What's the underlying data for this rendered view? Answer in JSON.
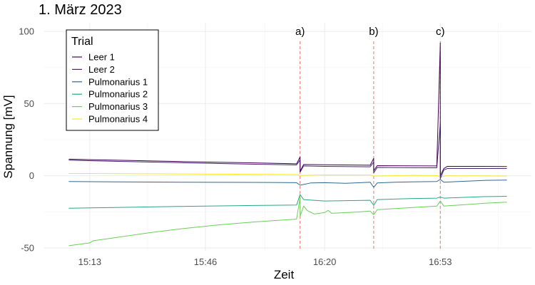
{
  "chart_data": {
    "type": "line",
    "title": "1. März 2023",
    "xlabel": "Zeit",
    "ylabel": "Spannung [mV]",
    "x_unit": "time of day (HH:MM)",
    "xlim": [
      "15:00",
      "17:19"
    ],
    "ylim": [
      -52,
      106
    ],
    "x_ticks": [
      "15:13",
      "15:46",
      "16:20",
      "16:53"
    ],
    "y_ticks": [
      -50,
      0,
      50,
      100
    ],
    "grid": true,
    "legend": {
      "title": "Trial",
      "placement": "top-left"
    },
    "annotations": [
      {
        "label": "a)",
        "x": "16:13",
        "line_style": "dashed",
        "line_color": "#e8796f"
      },
      {
        "label": "b)",
        "x": "16:34",
        "line_style": "dashed",
        "line_color": "#e8796f"
      },
      {
        "label": "c)",
        "x": "16:53",
        "line_style": "dashed",
        "line_color": "#e8796f"
      }
    ],
    "series": [
      {
        "name": "Leer 1",
        "color": "#440154",
        "points": [
          [
            "15:07",
            11.5
          ],
          [
            "15:20",
            10.8
          ],
          [
            "15:40",
            9.8
          ],
          [
            "16:00",
            8.9
          ],
          [
            "16:12",
            8.3
          ],
          [
            "16:13",
            13.0
          ],
          [
            "16:13",
            3.0
          ],
          [
            "16:14",
            7.8
          ],
          [
            "16:20",
            7.6
          ],
          [
            "16:33",
            7.3
          ],
          [
            "16:34",
            12.0
          ],
          [
            "16:34",
            3.5
          ],
          [
            "16:35",
            7.0
          ],
          [
            "16:45",
            6.9
          ],
          [
            "16:52",
            6.8
          ],
          [
            "16:53",
            92.0
          ],
          [
            "16:53",
            30.0
          ],
          [
            "16:53",
            0.0
          ],
          [
            "16:54",
            5.0
          ],
          [
            "16:55",
            6.5
          ],
          [
            "17:05",
            6.5
          ],
          [
            "17:12",
            6.4
          ]
        ]
      },
      {
        "name": "Leer 2",
        "color": "#482576",
        "points": [
          [
            "15:07",
            10.8
          ],
          [
            "15:20",
            10.0
          ],
          [
            "15:40",
            9.0
          ],
          [
            "16:00",
            8.0
          ],
          [
            "16:12",
            7.5
          ],
          [
            "16:13",
            11.0
          ],
          [
            "16:13",
            2.5
          ],
          [
            "16:14",
            6.8
          ],
          [
            "16:20",
            6.5
          ],
          [
            "16:33",
            6.2
          ],
          [
            "16:34",
            9.5
          ],
          [
            "16:34",
            2.0
          ],
          [
            "16:35",
            5.8
          ],
          [
            "16:45",
            5.6
          ],
          [
            "16:52",
            5.5
          ],
          [
            "16:53",
            36.0
          ],
          [
            "16:53",
            -2.0
          ],
          [
            "16:54",
            4.0
          ],
          [
            "16:55",
            5.0
          ],
          [
            "17:05",
            5.0
          ],
          [
            "17:12",
            5.0
          ]
        ]
      },
      {
        "name": "Pulmonarius 1",
        "color": "#31688e",
        "points": [
          [
            "15:07",
            -4.0
          ],
          [
            "15:20",
            -4.2
          ],
          [
            "15:40",
            -4.5
          ],
          [
            "16:00",
            -4.6
          ],
          [
            "16:12",
            -4.8
          ],
          [
            "16:13",
            -6.5
          ],
          [
            "16:16",
            -5.0
          ],
          [
            "16:20",
            -4.8
          ],
          [
            "16:26",
            -5.2
          ],
          [
            "16:33",
            -4.5
          ],
          [
            "16:34",
            -8.0
          ],
          [
            "16:35",
            -5.0
          ],
          [
            "16:40",
            -4.5
          ],
          [
            "16:45",
            -4.2
          ],
          [
            "16:52",
            -4.0
          ],
          [
            "16:53",
            -2.5
          ],
          [
            "16:54",
            -4.5
          ],
          [
            "17:00",
            -3.8
          ],
          [
            "17:06",
            -3.2
          ],
          [
            "17:12",
            -3.0
          ]
        ]
      },
      {
        "name": "Pulmonarius 2",
        "color": "#26a783",
        "points": [
          [
            "15:07",
            -22.5
          ],
          [
            "15:20",
            -22.0
          ],
          [
            "15:40",
            -21.2
          ],
          [
            "16:00",
            -20.6
          ],
          [
            "16:12",
            -20.3
          ],
          [
            "16:13",
            -13.0
          ],
          [
            "16:14",
            -16.5
          ],
          [
            "16:20",
            -17.5
          ],
          [
            "16:33",
            -17.0
          ],
          [
            "16:34",
            -20.5
          ],
          [
            "16:35",
            -16.5
          ],
          [
            "16:45",
            -15.8
          ],
          [
            "16:52",
            -15.5
          ],
          [
            "16:53",
            -14.8
          ],
          [
            "16:54",
            -15.5
          ],
          [
            "17:05",
            -14.5
          ],
          [
            "17:12",
            -14.2
          ]
        ]
      },
      {
        "name": "Pulmonarius 3",
        "color": "#6ccd5a",
        "points": [
          [
            "15:07",
            -48.5
          ],
          [
            "15:10",
            -47.5
          ],
          [
            "15:13",
            -46.5
          ],
          [
            "15:14",
            -45.0
          ],
          [
            "15:20",
            -43.0
          ],
          [
            "15:30",
            -39.5
          ],
          [
            "15:40",
            -36.5
          ],
          [
            "15:50",
            -34.0
          ],
          [
            "16:00",
            -32.0
          ],
          [
            "16:12",
            -30.0
          ],
          [
            "16:13",
            -15.0
          ],
          [
            "16:13",
            -28.0
          ],
          [
            "16:14",
            -21.0
          ],
          [
            "16:15",
            -24.0
          ],
          [
            "16:17",
            -26.5
          ],
          [
            "16:20",
            -25.5
          ],
          [
            "16:21",
            -24.0
          ],
          [
            "16:22",
            -26.0
          ],
          [
            "16:30",
            -25.0
          ],
          [
            "16:33",
            -24.5
          ],
          [
            "16:34",
            -27.0
          ],
          [
            "16:35",
            -23.5
          ],
          [
            "16:45",
            -22.0
          ],
          [
            "16:52",
            -21.0
          ],
          [
            "16:53",
            -17.5
          ],
          [
            "16:54",
            -21.0
          ],
          [
            "17:00",
            -20.0
          ],
          [
            "17:06",
            -19.0
          ],
          [
            "17:12",
            -18.3
          ]
        ]
      },
      {
        "name": "Pulmonarius 4",
        "color": "#fde725",
        "points": [
          [
            "15:07",
            1.6
          ],
          [
            "15:30",
            1.4
          ],
          [
            "16:00",
            1.0
          ],
          [
            "16:12",
            0.9
          ],
          [
            "16:13",
            0.2
          ],
          [
            "16:20",
            0.6
          ],
          [
            "16:33",
            0.5
          ],
          [
            "16:34",
            -0.2
          ],
          [
            "16:45",
            0.3
          ],
          [
            "16:52",
            0.1
          ],
          [
            "16:53",
            -0.8
          ],
          [
            "16:55",
            0.0
          ],
          [
            "17:05",
            -0.1
          ],
          [
            "17:12",
            -0.2
          ]
        ]
      }
    ]
  }
}
